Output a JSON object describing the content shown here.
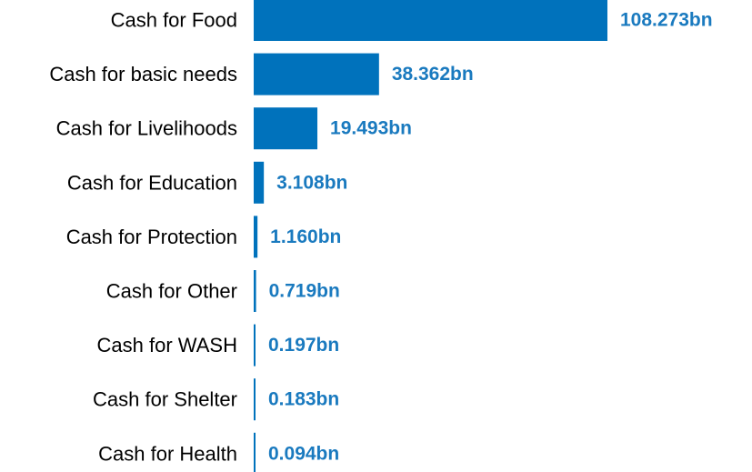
{
  "chart_data": {
    "type": "bar",
    "orientation": "horizontal",
    "categories": [
      "Cash for Food",
      "Cash for basic needs",
      "Cash for Livelihoods",
      "Cash for Education",
      "Cash for Protection",
      "Cash for Other",
      "Cash for WASH",
      "Cash for Shelter",
      "Cash for Health"
    ],
    "values": [
      108.273,
      38.362,
      19.493,
      3.108,
      1.16,
      0.719,
      0.197,
      0.183,
      0.094
    ],
    "value_labels": [
      "108.273bn",
      "38.362bn",
      "19.493bn",
      "3.108bn",
      "1.160bn",
      "0.719bn",
      "0.197bn",
      "0.183bn",
      "0.094bn"
    ],
    "title": "",
    "xlabel": "",
    "ylabel": "",
    "xlim": [
      0,
      108.273
    ],
    "grid": false,
    "legend": "none",
    "colors": {
      "bar": "#0072bc",
      "value_label": "#1a7abf",
      "category_label": "#000000"
    }
  }
}
